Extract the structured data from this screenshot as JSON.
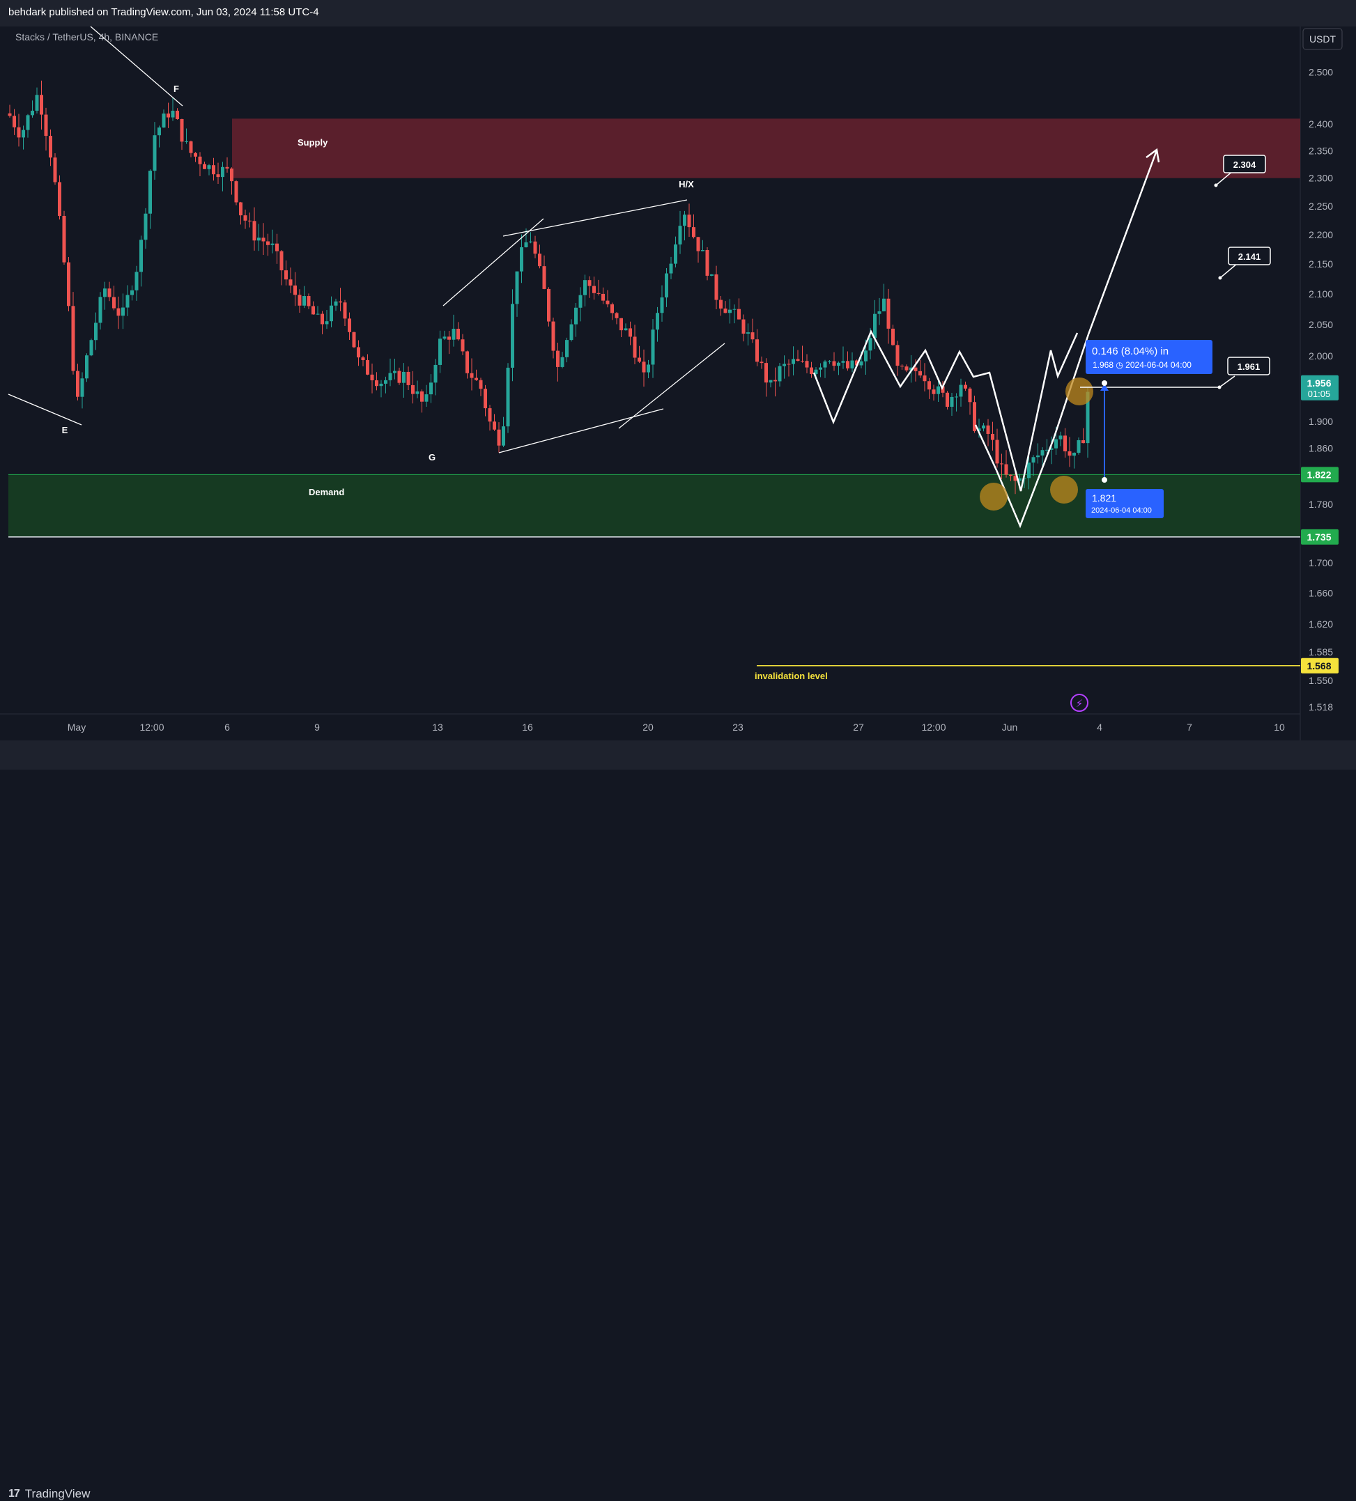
{
  "header": {
    "publish_text": "behdark published on TradingView.com, Jun 03, 2024 11:58 UTC-4"
  },
  "footer": {
    "brand": "TradingView",
    "brand_mark": "17"
  },
  "chart_data": {
    "type": "candlestick",
    "symbol_label": "Stacks / TetherUS, 4h, BINANCE",
    "currency_button": "USDT",
    "scale": "log",
    "colors": {
      "up": "#26a69a",
      "down": "#ef5350",
      "supply": "#5a1f2c",
      "demand": "#163a22",
      "accent_blue": "#2962ff",
      "invalidation": "#f5e23c",
      "marker": "#c08a1e"
    },
    "y_axis_ticks": [
      "2.500",
      "2.400",
      "2.350",
      "2.300",
      "2.250",
      "2.200",
      "2.150",
      "2.100",
      "2.050",
      "2.000",
      "1.950",
      "1.900",
      "1.860",
      "1.822",
      "1.780",
      "1.735",
      "1.700",
      "1.660",
      "1.620",
      "1.585",
      "1.568",
      "1.550",
      "1.518"
    ],
    "y_range": [
      1.518,
      2.56
    ],
    "x_axis_labels": [
      "May",
      "12:00",
      "6",
      "9",
      "13",
      "16",
      "20",
      "23",
      "27",
      "12:00",
      "Jun",
      "4",
      "7",
      "10"
    ],
    "price_badges": [
      {
        "label": "1.956",
        "sub": "01:05",
        "value": 1.956,
        "color": "#26a69a"
      },
      {
        "label": "1.822",
        "value": 1.822,
        "color": "#22ab4e"
      },
      {
        "label": "1.735",
        "value": 1.735,
        "color": "#22ab4e"
      },
      {
        "label": "1.568",
        "value": 1.568,
        "color": "#f5e23c"
      }
    ],
    "zones": {
      "supply": {
        "label": "Supply",
        "top": 2.41,
        "bottom": 2.3
      },
      "demand": {
        "label": "Demand",
        "top": 1.822,
        "bottom": 1.735
      }
    },
    "wave_labels": [
      "F",
      "E",
      "G",
      "H/X"
    ],
    "targets": [
      "2.304",
      "2.141",
      "1.961"
    ],
    "invalidation_label": "invalidation level",
    "measure": {
      "headline": "0.146 (8.04%) in",
      "detail": "1.968 ◷ 2024-06-04  04:00",
      "start_price": "1.821",
      "start_time": "2024-06-04 04:00"
    }
  }
}
